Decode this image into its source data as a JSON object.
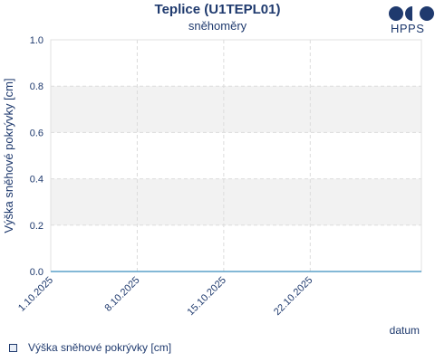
{
  "chart_data": {
    "type": "line",
    "title": "Teplice (U1TEPL01)",
    "subtitle": "sněhoměry",
    "ylabel": "Výška sněhové pokrývky [cm]",
    "xlabel": "datum",
    "ylim": [
      0,
      1
    ],
    "yticks": [
      0.0,
      0.2,
      0.4,
      0.6,
      0.8,
      1.0
    ],
    "ytick_labels": [
      "0.0",
      "0.2",
      "0.4",
      "0.6",
      "0.8",
      "1.0"
    ],
    "x_range": [
      "2025-10-01",
      "2025-10-31"
    ],
    "xticks": [
      "2025-10-01",
      "2025-10-08",
      "2025-10-15",
      "2025-10-22"
    ],
    "xtick_labels": [
      "1.10.2025",
      "8.10.2025",
      "15.10.2025",
      "22.10.2025"
    ],
    "grid": true,
    "legend_position": "bottom-left",
    "series": [
      {
        "name": "Výška sněhové pokrývky [cm]",
        "x": [
          "2025-10-01",
          "2025-10-31"
        ],
        "values": [
          0,
          0
        ],
        "color": "#5aa0c8"
      }
    ]
  },
  "branding": {
    "logo_text": "HPPS",
    "logo_color": "#1f3a6e"
  }
}
